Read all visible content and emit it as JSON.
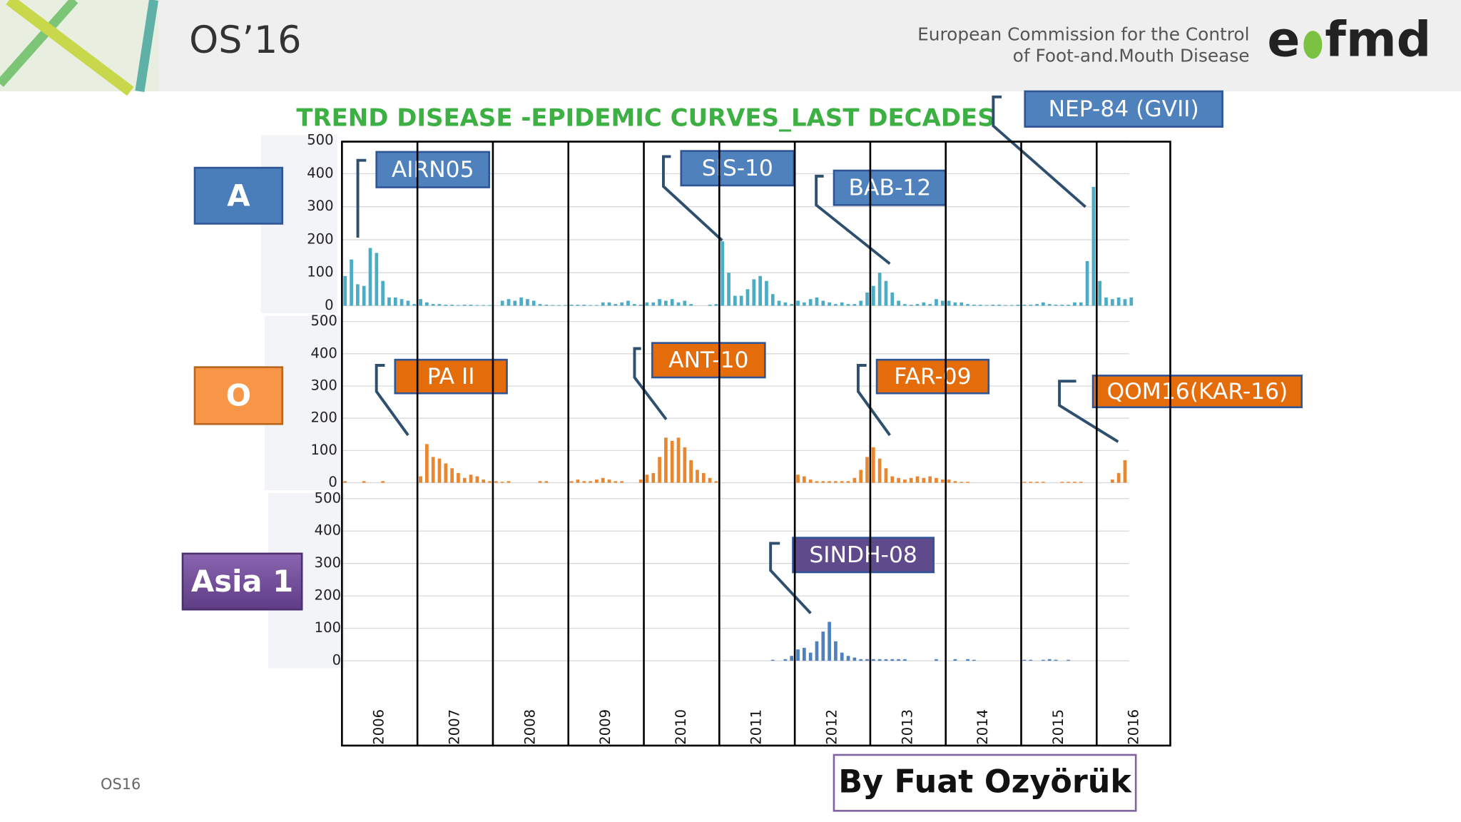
{
  "header": {
    "event": "OS’16",
    "org_line1": "European Commission for the Control",
    "org_line2": "of Foot-and.Mouth Disease",
    "logo": [
      "e",
      "fmd"
    ]
  },
  "title": "TREND DISEASE -EPIDEMIC CURVES_LAST DECADES",
  "years": [
    "2006",
    "2007",
    "2008",
    "2009",
    "2010",
    "2011",
    "2012",
    "2013",
    "2014",
    "2015",
    "2016"
  ],
  "chart_data": [
    {
      "type": "bar",
      "name": "A",
      "color": "#4bacc6",
      "ylim": [
        0,
        500
      ],
      "yticks": [
        0,
        100,
        200,
        300,
        400,
        500
      ],
      "grid": true,
      "annotations": [
        "AIRN05",
        "SIS-10",
        "BAB-12",
        "NEP-84 (GVII)"
      ],
      "values": [
        90,
        140,
        65,
        60,
        175,
        160,
        75,
        25,
        25,
        20,
        15,
        5,
        20,
        10,
        5,
        5,
        3,
        3,
        2,
        3,
        3,
        2,
        2,
        2,
        0,
        15,
        20,
        15,
        25,
        20,
        15,
        5,
        3,
        2,
        2,
        2,
        3,
        3,
        3,
        2,
        2,
        10,
        10,
        5,
        10,
        15,
        5,
        3,
        10,
        10,
        20,
        15,
        20,
        10,
        15,
        5,
        0,
        0,
        3,
        5,
        195,
        100,
        30,
        30,
        50,
        80,
        90,
        75,
        35,
        15,
        10,
        5,
        15,
        10,
        20,
        25,
        15,
        10,
        5,
        10,
        5,
        5,
        15,
        40,
        60,
        100,
        75,
        40,
        15,
        5,
        3,
        5,
        10,
        5,
        20,
        15,
        15,
        10,
        10,
        5,
        3,
        3,
        2,
        3,
        3,
        2,
        2,
        3,
        3,
        3,
        5,
        10,
        5,
        3,
        3,
        3,
        10,
        10,
        135,
        360,
        75,
        25,
        20,
        25,
        20,
        25
      ]
    },
    {
      "type": "bar",
      "name": "O",
      "color": "#e8872f",
      "ylim": [
        0,
        500
      ],
      "yticks": [
        0,
        100,
        200,
        300,
        400,
        500
      ],
      "grid": true,
      "annotations": [
        "PA II",
        "ANT-10",
        "FAR-09",
        "QOM16(KAR-16)"
      ],
      "values": [
        5,
        0,
        0,
        5,
        0,
        0,
        5,
        0,
        0,
        0,
        0,
        0,
        20,
        120,
        80,
        75,
        60,
        45,
        30,
        15,
        25,
        20,
        10,
        5,
        5,
        3,
        5,
        0,
        0,
        0,
        0,
        5,
        5,
        0,
        0,
        0,
        5,
        10,
        5,
        5,
        10,
        15,
        10,
        5,
        5,
        0,
        0,
        10,
        25,
        30,
        80,
        140,
        130,
        140,
        110,
        70,
        40,
        30,
        15,
        5,
        0,
        0,
        0,
        0,
        0,
        0,
        0,
        0,
        0,
        0,
        0,
        0,
        25,
        20,
        10,
        5,
        5,
        5,
        5,
        5,
        5,
        15,
        40,
        80,
        110,
        75,
        45,
        20,
        15,
        10,
        15,
        20,
        15,
        20,
        15,
        10,
        10,
        5,
        3,
        3,
        0,
        0,
        0,
        0,
        0,
        0,
        0,
        0,
        3,
        3,
        3,
        3,
        0,
        0,
        3,
        3,
        3,
        3,
        0,
        0,
        0,
        0,
        10,
        30,
        70,
        0
      ]
    },
    {
      "type": "bar",
      "name": "Asia 1",
      "color": "#4f81bd",
      "ylim": [
        0,
        500
      ],
      "yticks": [
        0,
        100,
        200,
        300,
        400,
        500
      ],
      "grid": true,
      "annotations": [
        "SINDH-08"
      ],
      "values": [
        0,
        0,
        0,
        0,
        0,
        0,
        0,
        0,
        0,
        0,
        0,
        0,
        0,
        0,
        0,
        0,
        0,
        0,
        0,
        0,
        0,
        0,
        0,
        0,
        0,
        0,
        0,
        0,
        0,
        0,
        0,
        0,
        0,
        0,
        0,
        0,
        0,
        0,
        0,
        0,
        0,
        0,
        0,
        0,
        0,
        0,
        0,
        0,
        0,
        0,
        0,
        0,
        0,
        0,
        0,
        0,
        0,
        0,
        0,
        0,
        0,
        0,
        0,
        0,
        0,
        0,
        0,
        0,
        3,
        0,
        5,
        15,
        35,
        40,
        25,
        60,
        90,
        120,
        60,
        25,
        15,
        10,
        5,
        5,
        5,
        5,
        5,
        5,
        5,
        5,
        0,
        0,
        0,
        0,
        5,
        0,
        0,
        5,
        0,
        5,
        3,
        0,
        0,
        0,
        0,
        0,
        0,
        0,
        3,
        3,
        0,
        3,
        5,
        3,
        0,
        3,
        0,
        0,
        0,
        0,
        0,
        0,
        0,
        0,
        0,
        0
      ]
    }
  ],
  "footer": {
    "slide": "OS16",
    "author": "By Fuat Ozyörük"
  }
}
